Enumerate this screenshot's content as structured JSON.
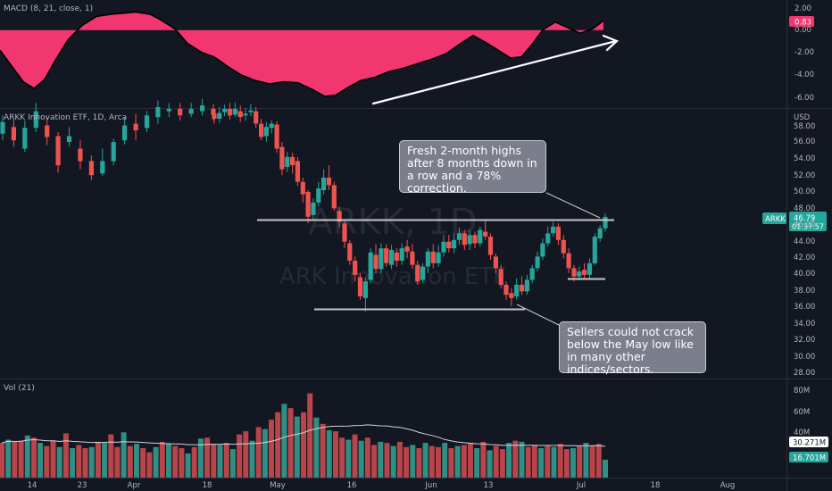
{
  "panes": {
    "macd": {
      "title": "MACD (8, 21, close, 1)",
      "ticks": [
        "2.00",
        "0.00",
        "-2.00",
        "-4.00",
        "-6.00"
      ],
      "last_value_badge": "0.83",
      "badge_color": "#f23670"
    },
    "price": {
      "title": "ARKK Innovation ETF, 1D, Arca",
      "currency": "USD",
      "ticks": [
        "58.00",
        "56.00",
        "54.00",
        "52.00",
        "50.00",
        "48.00",
        "46.00",
        "44.00",
        "42.00",
        "40.00",
        "38.00",
        "36.00",
        "34.00",
        "32.00",
        "30.00",
        "28.00"
      ],
      "symbol_badge": "ARKK",
      "price_badge": "46.79",
      "countdown": "01:37:57",
      "watermark_symbol": "ARKK, 1D",
      "watermark_name": "ARK Innovation ETF"
    },
    "volume": {
      "title": "Vol (21)",
      "ticks": [
        "80M",
        "60M",
        "40M"
      ],
      "ma_badge": "30.271M",
      "vol_badge": "16.701M"
    }
  },
  "x_axis": {
    "labels": [
      "14",
      "23",
      "Apr",
      "18",
      "May",
      "16",
      "Jun",
      "13",
      "Jul",
      "18",
      "Aug"
    ]
  },
  "annotations": {
    "callout_top": "Fresh 2-month highs\nafter 8 months down in\na row and a 78%\ncorrection.",
    "callout_bottom": "Sellers could not crack\nbelow the May low like\nin many other\nindices/sectors."
  },
  "colors": {
    "up": "#26a69a",
    "down": "#ef5350",
    "macd_fill": "#f23670",
    "background": "#131722",
    "level_line": "#c5c7cc"
  },
  "chart_data": [
    {
      "type": "area",
      "title": "MACD (8, 21, close, 1)",
      "x": [
        "Mar 14",
        "Mar 23",
        "Apr 1",
        "Apr 18",
        "May 2",
        "May 16",
        "Jun 1",
        "Jun 13",
        "Jul 1"
      ],
      "values": [
        -3.6,
        -1.5,
        1.8,
        0.3,
        -2.4,
        -5.6,
        -3.2,
        -1.8,
        0.83
      ],
      "ylim": [
        -6.5,
        2.5
      ]
    },
    {
      "type": "candlestick",
      "title": "ARK Innovation ETF, 1D, Arca",
      "ylabel": "USD",
      "ylim": [
        27,
        60
      ],
      "series": [
        {
          "name": "ARKK",
          "values": [
            46.79
          ]
        }
      ],
      "levels": [
        46.0,
        35.6,
        39.4
      ],
      "last_price": 46.79
    },
    {
      "type": "bar",
      "title": "Vol (21)",
      "ylim": [
        0,
        85
      ],
      "ma_last": 30.271,
      "last_value": 16.701
    }
  ]
}
